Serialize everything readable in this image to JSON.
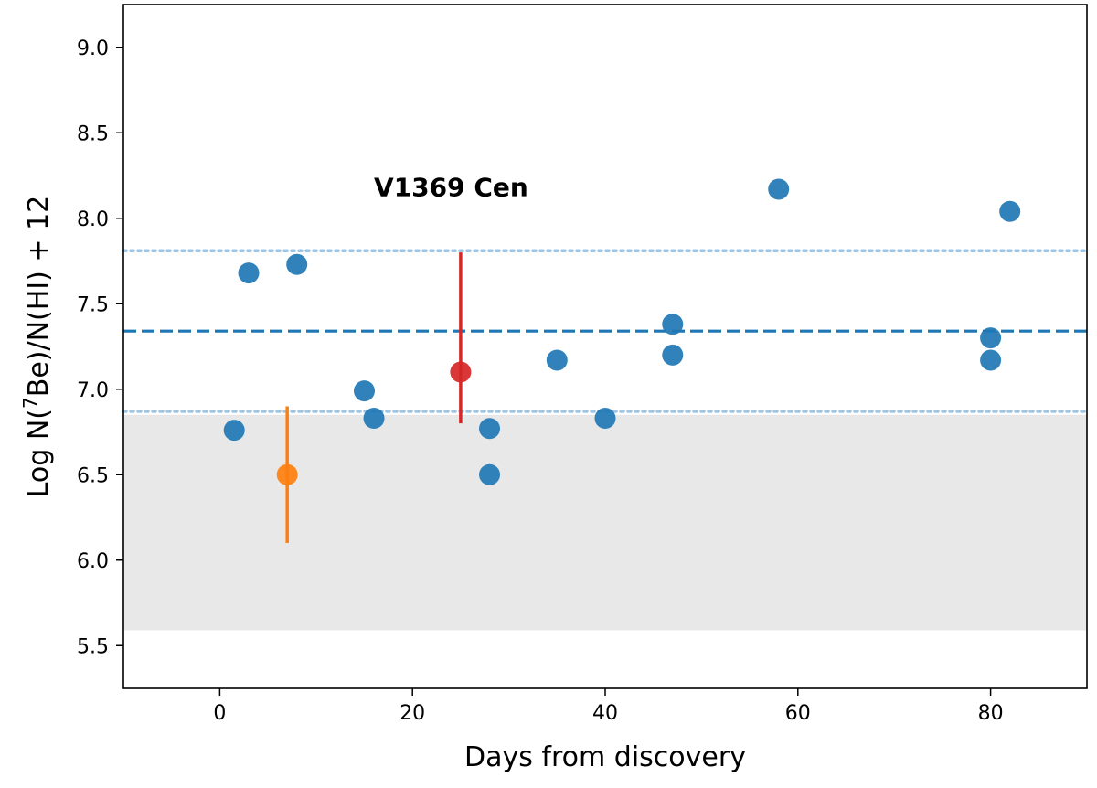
{
  "chart_data": {
    "type": "scatter",
    "title": "",
    "annotation": "V1369 Cen",
    "xlabel": "Days from discovery",
    "ylabel_prefix": "Log N(",
    "ylabel_sup": "7",
    "ylabel_suffix": "Be)/N(HI) + 12",
    "xlim": [
      -10,
      90
    ],
    "ylim": [
      5.25,
      9.25
    ],
    "xticks": [
      0,
      20,
      40,
      60,
      80
    ],
    "xtick_labels": [
      "0",
      "20",
      "40",
      "60",
      "80"
    ],
    "yticks": [
      5.5,
      6.0,
      6.5,
      7.0,
      7.5,
      8.0,
      8.5,
      9.0
    ],
    "ytick_labels": [
      "5.5",
      "6.0",
      "6.5",
      "7.0",
      "7.5",
      "8.0",
      "8.5",
      "9.0"
    ],
    "grid": false,
    "shaded_region": {
      "y_min": 5.59,
      "y_max": 6.85,
      "color": "#e8e8e8"
    },
    "mean_line": {
      "y": 7.34,
      "style": "dashed",
      "color": "#1f77b4"
    },
    "bound_lines": [
      {
        "y": 7.81,
        "style": "dotted",
        "color": "#9ec5e3"
      },
      {
        "y": 6.87,
        "style": "dotted",
        "color": "#9ec5e3"
      }
    ],
    "series": [
      {
        "name": "measurements",
        "color": "#1f77b4",
        "x": [
          1.5,
          3,
          8,
          15,
          16,
          28,
          28,
          35,
          40,
          47,
          47,
          58,
          80,
          80,
          82
        ],
        "y": [
          6.76,
          7.68,
          7.73,
          6.99,
          6.83,
          6.77,
          6.5,
          7.17,
          6.83,
          7.38,
          7.2,
          8.17,
          7.3,
          7.17,
          8.04
        ]
      },
      {
        "name": "orange-point",
        "color": "#ff7f0e",
        "x": [
          7
        ],
        "y": [
          6.5
        ],
        "yerr_low": [
          6.1
        ],
        "yerr_high": [
          6.9
        ]
      },
      {
        "name": "red-point",
        "color": "#d62728",
        "x": [
          25
        ],
        "y": [
          7.1
        ],
        "yerr_low": [
          6.8
        ],
        "yerr_high": [
          7.8
        ]
      }
    ]
  }
}
